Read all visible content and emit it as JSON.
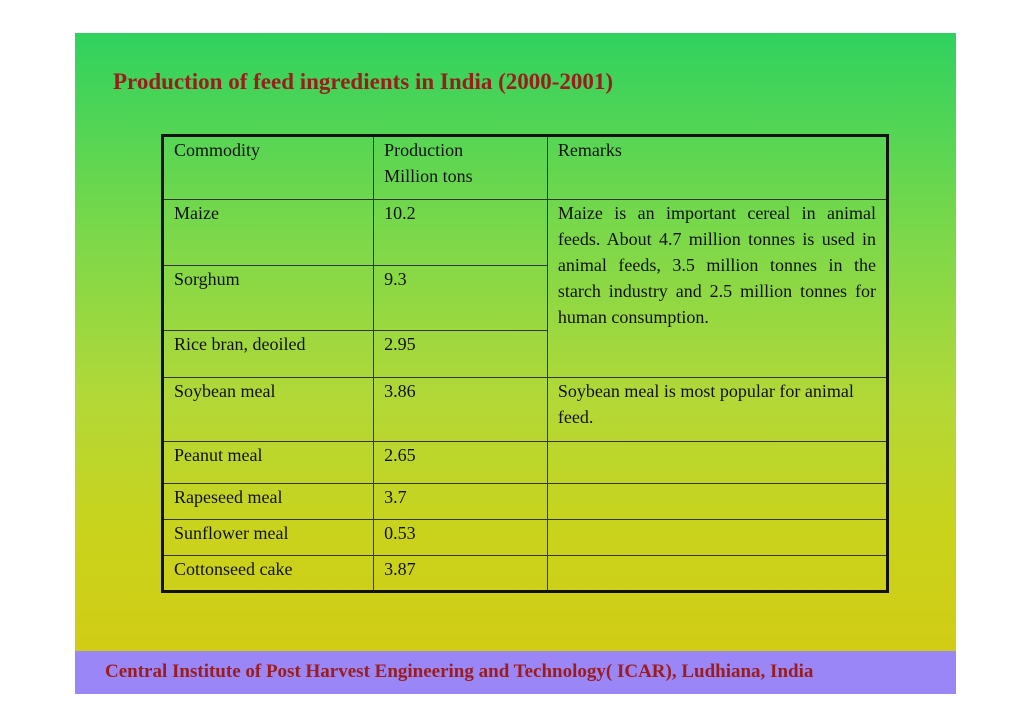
{
  "title": "Production of feed ingredients in India (2000-2001)",
  "table": {
    "headers": {
      "commodity": "Commodity",
      "production": "Production Million tons",
      "remarks": "Remarks"
    },
    "rows": [
      {
        "commodity": "Maize",
        "production": "10.2"
      },
      {
        "commodity": "Sorghum",
        "production": "9.3"
      },
      {
        "commodity": "Rice bran, deoiled",
        "production": "2.95"
      },
      {
        "commodity": "Soybean meal",
        "production": "3.86"
      },
      {
        "commodity": "Peanut meal",
        "production": "2.65"
      },
      {
        "commodity": "Rapeseed meal",
        "production": "3.7"
      },
      {
        "commodity": "Sunflower meal",
        "production": "0.53"
      },
      {
        "commodity": "Cottonseed cake",
        "production": "3.87"
      }
    ],
    "remarks": {
      "cereals": "Maize is an important cereal in animal feeds. About 4.7 million tonnes is used in animal feeds, 3.5 million tonnes in the starch industry and 2.5 million tonnes for human consumption.",
      "soybean": "Soybean meal is most popular for animal feed."
    }
  },
  "footer": "Central Institute of Post Harvest Engineering and Technology( ICAR), Ludhiana, India"
}
